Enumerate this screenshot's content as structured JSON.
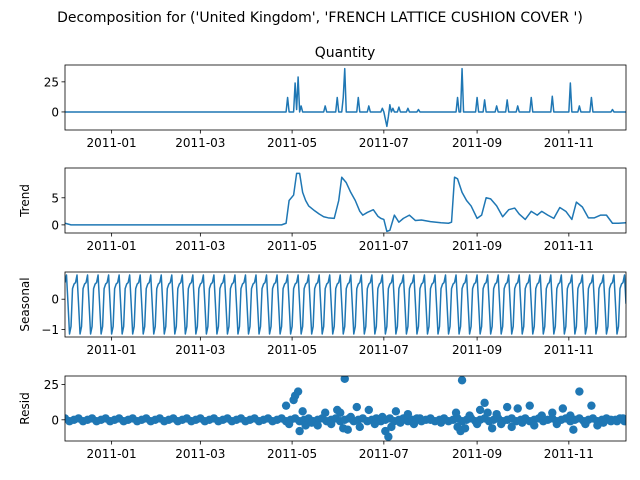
{
  "figure": {
    "suptitle": "Decomposition for ('United Kingdom', 'FRENCH LATTICE CUSHION COVER ')"
  },
  "colors": {
    "series": "#1f77b4",
    "axis": "#000000",
    "background": "#ffffff"
  },
  "chart_data": [
    {
      "type": "line",
      "title": "Quantity",
      "ylabel": "",
      "xlim": [
        "2010-12-01",
        "2011-12-09"
      ],
      "ylim": [
        -15,
        39
      ],
      "xticks": [
        "2011-01-01",
        "2011-03-01",
        "2011-05-01",
        "2011-07-01",
        "2011-09-01",
        "2011-11-01"
      ],
      "xtick_labels": [
        "2011-01",
        "2011-03",
        "2011-05",
        "2011-07",
        "2011-09",
        "2011-11"
      ],
      "yticks": [
        0,
        25
      ],
      "ytick_labels": [
        "0",
        "25"
      ],
      "grid": false,
      "series": [
        {
          "x": [
            "2010-12-01",
            "2011-04-27",
            "2011-04-28",
            "2011-04-29",
            "2011-05-01",
            "2011-05-02",
            "2011-05-03",
            "2011-05-04",
            "2011-05-05",
            "2011-05-06",
            "2011-05-07",
            "2011-05-08",
            "2011-05-22",
            "2011-05-23",
            "2011-05-24",
            "2011-05-30",
            "2011-05-31",
            "2011-06-01",
            "2011-06-03",
            "2011-06-04",
            "2011-06-05",
            "2011-06-06",
            "2011-06-13",
            "2011-06-14",
            "2011-06-15",
            "2011-06-20",
            "2011-06-21",
            "2011-06-22",
            "2011-06-29",
            "2011-06-30",
            "2011-07-01",
            "2011-07-02",
            "2011-07-03",
            "2011-07-04",
            "2011-07-05",
            "2011-07-06",
            "2011-07-07",
            "2011-07-08",
            "2011-07-10",
            "2011-07-11",
            "2011-07-12",
            "2011-07-16",
            "2011-07-17",
            "2011-07-18",
            "2011-07-23",
            "2011-07-24",
            "2011-07-25",
            "2011-08-17",
            "2011-08-18",
            "2011-08-19",
            "2011-08-20",
            "2011-08-21",
            "2011-08-22",
            "2011-08-23",
            "2011-08-24",
            "2011-08-25",
            "2011-08-31",
            "2011-09-01",
            "2011-09-02",
            "2011-09-05",
            "2011-09-06",
            "2011-09-07",
            "2011-09-13",
            "2011-09-14",
            "2011-09-15",
            "2011-09-20",
            "2011-09-21",
            "2011-09-22",
            "2011-09-27",
            "2011-09-28",
            "2011-09-29",
            "2011-10-06",
            "2011-10-07",
            "2011-10-08",
            "2011-10-20",
            "2011-10-21",
            "2011-10-22",
            "2011-11-01",
            "2011-11-02",
            "2011-11-03",
            "2011-11-07",
            "2011-11-08",
            "2011-11-09",
            "2011-11-15",
            "2011-11-16",
            "2011-11-17",
            "2011-11-29",
            "2011-11-30",
            "2011-12-01",
            "2011-12-09"
          ],
          "values": [
            0,
            0,
            12,
            0,
            0,
            0,
            24,
            2,
            29,
            0,
            5,
            0,
            0,
            5,
            0,
            0,
            12,
            0,
            0,
            12,
            36,
            0,
            0,
            12,
            0,
            0,
            5,
            0,
            0,
            3,
            0,
            -6,
            -12,
            -4,
            6,
            0,
            3,
            0,
            0,
            4,
            0,
            0,
            3,
            0,
            0,
            2,
            0,
            0,
            0,
            12,
            0,
            0,
            36,
            0,
            0,
            0,
            0,
            12,
            0,
            0,
            10,
            0,
            0,
            5,
            0,
            0,
            10,
            0,
            0,
            5,
            0,
            0,
            12,
            0,
            0,
            13,
            0,
            0,
            24,
            0,
            0,
            5,
            0,
            0,
            12,
            0,
            0,
            2,
            0,
            0
          ]
        }
      ]
    },
    {
      "type": "line",
      "title": "",
      "ylabel": "Trend",
      "xlim": [
        "2010-12-01",
        "2011-12-09"
      ],
      "ylim": [
        -1.5,
        10.5
      ],
      "xticks": [
        "2011-01-01",
        "2011-03-01",
        "2011-05-01",
        "2011-07-01",
        "2011-09-01",
        "2011-11-01"
      ],
      "xtick_labels": [
        "2011-01",
        "2011-03",
        "2011-05",
        "2011-07",
        "2011-09",
        "2011-11"
      ],
      "yticks": [
        0,
        5
      ],
      "ytick_labels": [
        "0",
        "5"
      ],
      "grid": false,
      "series": [
        {
          "x": [
            "2010-12-01",
            "2010-12-05",
            "2011-04-24",
            "2011-04-27",
            "2011-04-29",
            "2011-05-02",
            "2011-05-04",
            "2011-05-06",
            "2011-05-08",
            "2011-05-10",
            "2011-05-12",
            "2011-05-16",
            "2011-05-19",
            "2011-05-22",
            "2011-05-25",
            "2011-05-29",
            "2011-06-01",
            "2011-06-03",
            "2011-06-06",
            "2011-06-09",
            "2011-06-12",
            "2011-06-15",
            "2011-06-17",
            "2011-06-20",
            "2011-06-24",
            "2011-06-27",
            "2011-06-29",
            "2011-07-01",
            "2011-07-03",
            "2011-07-05",
            "2011-07-08",
            "2011-07-11",
            "2011-07-14",
            "2011-07-18",
            "2011-07-22",
            "2011-07-26",
            "2011-08-01",
            "2011-08-08",
            "2011-08-13",
            "2011-08-15",
            "2011-08-17",
            "2011-08-19",
            "2011-08-22",
            "2011-08-25",
            "2011-08-28",
            "2011-09-01",
            "2011-09-04",
            "2011-09-07",
            "2011-09-10",
            "2011-09-14",
            "2011-09-18",
            "2011-09-22",
            "2011-09-26",
            "2011-09-29",
            "2011-10-03",
            "2011-10-07",
            "2011-10-11",
            "2011-10-14",
            "2011-10-18",
            "2011-10-22",
            "2011-10-26",
            "2011-10-30",
            "2011-11-03",
            "2011-11-06",
            "2011-11-10",
            "2011-11-14",
            "2011-11-18",
            "2011-11-22",
            "2011-11-26",
            "2011-11-30",
            "2011-12-04",
            "2011-12-09"
          ],
          "values": [
            0.3,
            0,
            0,
            0.3,
            4.5,
            5.5,
            9.5,
            9.5,
            6,
            4.5,
            3.5,
            2.6,
            2,
            1.5,
            1.3,
            1.2,
            4.5,
            8.8,
            7.8,
            6,
            4.5,
            2.5,
            1.8,
            2.3,
            2.8,
            1.6,
            1.2,
            1,
            -1.2,
            -1,
            1.8,
            0.5,
            1.2,
            1.8,
            0.8,
            0.9,
            0.6,
            0.4,
            0.3,
            0.5,
            8.8,
            8.5,
            6,
            4.5,
            3.5,
            1.2,
            1.8,
            5,
            4.8,
            3.5,
            1.5,
            2.8,
            3.1,
            2,
            1,
            2.5,
            1.8,
            2.5,
            1.8,
            1.2,
            3.2,
            2.5,
            1,
            4.2,
            3.3,
            1.3,
            1.3,
            1.8,
            1.8,
            0.3,
            0.3,
            0.4
          ]
        }
      ]
    },
    {
      "type": "line",
      "title": "",
      "ylabel": "Seasonal",
      "xlim": [
        "2010-12-01",
        "2011-12-09"
      ],
      "ylim": [
        -1.25,
        0.9
      ],
      "xticks": [
        "2011-01-01",
        "2011-03-01",
        "2011-05-01",
        "2011-07-01",
        "2011-09-01",
        "2011-11-01"
      ],
      "xtick_labels": [
        "2011-01",
        "2011-03",
        "2011-05",
        "2011-07",
        "2011-09",
        "2011-11"
      ],
      "yticks": [
        -1,
        0
      ],
      "ytick_labels": [
        "−1",
        "0"
      ],
      "grid": false,
      "period_days": 7,
      "pattern": [
        0.55,
        0.8,
        -0.15,
        -1.15,
        -0.9,
        0.35,
        0.5
      ],
      "start": "2010-12-01",
      "end": "2011-12-09"
    },
    {
      "type": "scatter",
      "title": "",
      "ylabel": "Resid",
      "xlim": [
        "2010-12-01",
        "2011-12-09"
      ],
      "ylim": [
        -15,
        31
      ],
      "xticks": [
        "2011-01-01",
        "2011-03-01",
        "2011-05-01",
        "2011-07-01",
        "2011-09-01",
        "2011-11-01"
      ],
      "xtick_labels": [
        "2011-01",
        "2011-03",
        "2011-05",
        "2011-07",
        "2011-09",
        "2011-11"
      ],
      "yticks": [
        0,
        25
      ],
      "ytick_labels": [
        "0",
        "25"
      ],
      "grid": false,
      "points": {
        "x": [
          "2011-04-27",
          "2011-04-29",
          "2011-05-02",
          "2011-05-03",
          "2011-05-05",
          "2011-05-06",
          "2011-05-08",
          "2011-05-10",
          "2011-05-14",
          "2011-05-18",
          "2011-05-23",
          "2011-05-27",
          "2011-05-31",
          "2011-06-02",
          "2011-06-04",
          "2011-06-05",
          "2011-06-07",
          "2011-06-09",
          "2011-06-13",
          "2011-06-15",
          "2011-06-21",
          "2011-06-25",
          "2011-06-30",
          "2011-07-02",
          "2011-07-04",
          "2011-07-06",
          "2011-07-09",
          "2011-07-12",
          "2011-07-17",
          "2011-07-21",
          "2011-07-25",
          "2011-08-01",
          "2011-08-08",
          "2011-08-18",
          "2011-08-19",
          "2011-08-21",
          "2011-08-22",
          "2011-08-24",
          "2011-08-27",
          "2011-09-01",
          "2011-09-03",
          "2011-09-06",
          "2011-09-08",
          "2011-09-11",
          "2011-09-14",
          "2011-09-17",
          "2011-09-21",
          "2011-09-24",
          "2011-09-28",
          "2011-10-01",
          "2011-10-06",
          "2011-10-09",
          "2011-10-14",
          "2011-10-21",
          "2011-10-24",
          "2011-10-28",
          "2011-11-02",
          "2011-11-04",
          "2011-11-08",
          "2011-11-12",
          "2011-11-16",
          "2011-11-20",
          "2011-11-24",
          "2011-11-29",
          "2011-12-03",
          "2011-12-07"
        ],
        "values": [
          10,
          -3,
          14,
          17,
          20,
          -8,
          6,
          -4,
          -2,
          -4,
          5,
          -3,
          7,
          5,
          -6,
          29,
          -7,
          2,
          9,
          -5,
          7,
          -3,
          2,
          -8,
          -12,
          -5,
          6,
          -2,
          4,
          -3,
          1,
          0,
          -2,
          5,
          -5,
          -8,
          28,
          -6,
          3,
          -3,
          7,
          12,
          5,
          -6,
          4,
          -3,
          9,
          -5,
          8,
          -2,
          10,
          -4,
          3,
          5,
          -3,
          8,
          3,
          -7,
          20,
          -3,
          10,
          -4,
          -2,
          0,
          -1,
          1
        ]
      },
      "baseline_spacing_days": 3,
      "baseline_start": "2010-12-01",
      "baseline_end": "2011-12-09"
    }
  ]
}
